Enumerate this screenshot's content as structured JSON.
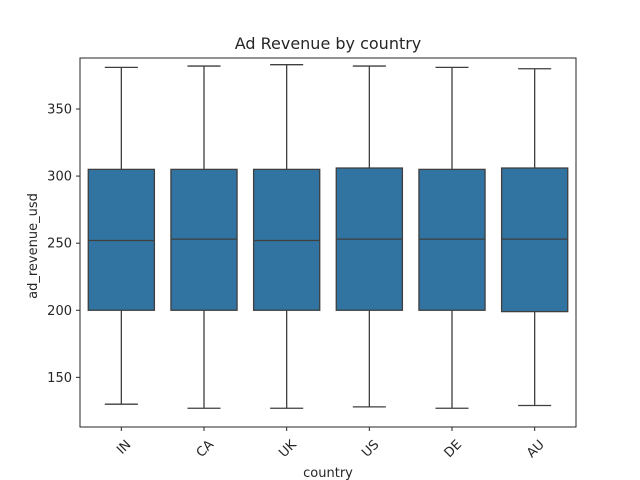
{
  "chart_data": {
    "type": "box",
    "title": "Ad Revenue by country",
    "xlabel": "country",
    "ylabel": "ad_revenue_usd",
    "categories": [
      "IN",
      "CA",
      "UK",
      "US",
      "DE",
      "AU"
    ],
    "series": [
      {
        "boxes": [
          {
            "category": "IN",
            "whislo": 130,
            "q1": 200,
            "med": 252,
            "q3": 305,
            "whishi": 381
          },
          {
            "category": "CA",
            "whislo": 127,
            "q1": 200,
            "med": 253,
            "q3": 305,
            "whishi": 382
          },
          {
            "category": "UK",
            "whislo": 127,
            "q1": 200,
            "med": 252,
            "q3": 305,
            "whishi": 383
          },
          {
            "category": "US",
            "whislo": 128,
            "q1": 200,
            "med": 253,
            "q3": 306,
            "whishi": 382
          },
          {
            "category": "DE",
            "whislo": 127,
            "q1": 200,
            "med": 253,
            "q3": 305,
            "whishi": 381
          },
          {
            "category": "AU",
            "whislo": 129,
            "q1": 199,
            "med": 253,
            "q3": 306,
            "whishi": 380
          }
        ]
      }
    ],
    "yticks": [
      150,
      200,
      250,
      300,
      350
    ],
    "ylim": [
      113,
      388
    ],
    "grid": false,
    "box_color": "#3274a1",
    "line_color": "#3f3f3f"
  }
}
